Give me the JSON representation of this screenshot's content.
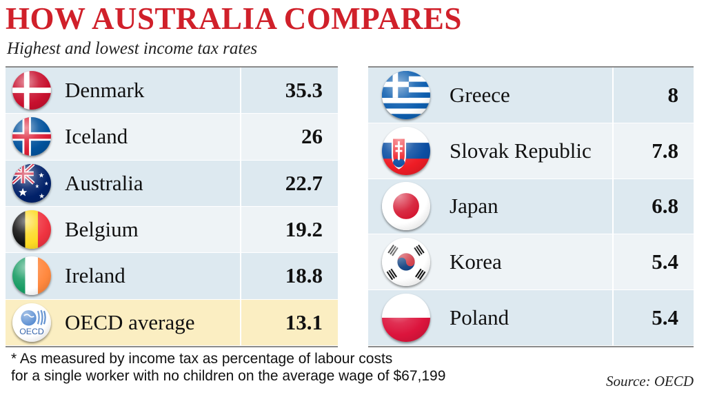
{
  "title": "HOW AUSTRALIA COMPARES",
  "subtitle": "Highest and lowest income tax rates",
  "chart_data": {
    "type": "table",
    "title": "HOW AUSTRALIA COMPARES",
    "subtitle": "Highest and lowest income tax rates",
    "highest": [
      {
        "country": "Denmark",
        "value": "35.3",
        "flag": "denmark-flag-icon"
      },
      {
        "country": "Iceland",
        "value": "26",
        "flag": "iceland-flag-icon"
      },
      {
        "country": "Australia",
        "value": "22.7",
        "flag": "australia-flag-icon"
      },
      {
        "country": "Belgium",
        "value": "19.2",
        "flag": "belgium-flag-icon"
      },
      {
        "country": "Ireland",
        "value": "18.8",
        "flag": "ireland-flag-icon"
      },
      {
        "country": "OECD average",
        "value": "13.1",
        "flag": "oecd-logo-icon"
      }
    ],
    "lowest": [
      {
        "country": "Greece",
        "value": "8",
        "flag": "greece-flag-icon"
      },
      {
        "country": "Slovak Republic",
        "value": "7.8",
        "flag": "slovakia-flag-icon"
      },
      {
        "country": "Japan",
        "value": "6.8",
        "flag": "japan-flag-icon"
      },
      {
        "country": "Korea",
        "value": "5.4",
        "flag": "korea-flag-icon"
      },
      {
        "country": "Poland",
        "value": "5.4",
        "flag": "poland-flag-icon"
      }
    ]
  },
  "footnote": {
    "line1": "* As measured by income tax as percentage of labour costs",
    "line2": "for a single worker with no children on the average wage of $67,199"
  },
  "source": "Source: OECD",
  "oecd_logo_text": "OECD",
  "colors": {
    "title_red": "#d0202a",
    "row_blue": "#dde9f0",
    "row_light": "#eef3f6",
    "row_average": "#fbeec2"
  }
}
